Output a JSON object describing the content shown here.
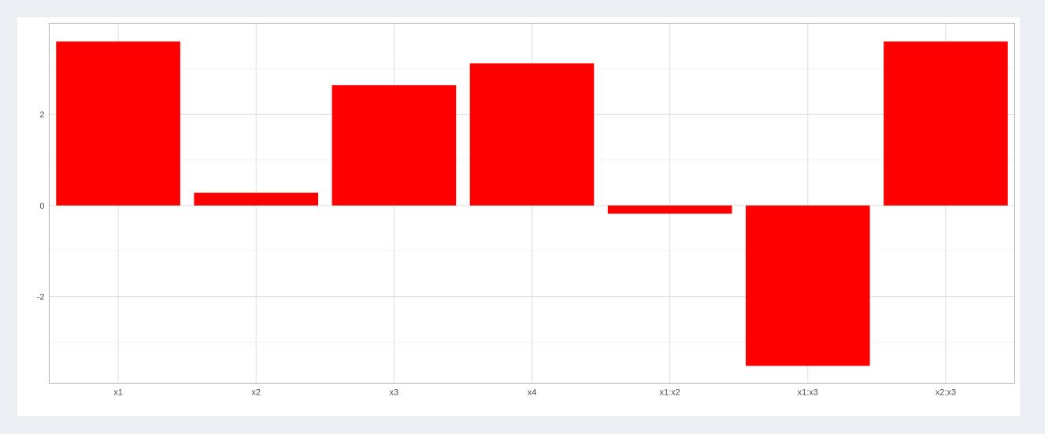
{
  "colors": {
    "page_background": "#ecf0f5",
    "panel_background": "#ffffff",
    "bar_fill": "#ff0000",
    "grid_major": "#dedede",
    "grid_minor": "#ececec",
    "panel_border": "#b3b3b3",
    "tick_text": "#4d4d4d"
  },
  "chart_data": {
    "type": "bar",
    "title": "",
    "xlabel": "",
    "ylabel": "",
    "categories": [
      "x1",
      "x2",
      "x3",
      "x4",
      "x1:x2",
      "x1:x3",
      "x2:x3"
    ],
    "values": [
      3.6,
      0.28,
      2.64,
      3.12,
      -0.18,
      -3.52,
      3.6
    ],
    "ylim": [
      -3.9,
      4.0
    ],
    "y_ticks": [
      -2,
      0,
      2
    ],
    "y_tick_labels": [
      "-2",
      "0",
      "2"
    ],
    "y_minor_ticks": [
      -3,
      -1,
      1,
      3
    ],
    "grid": true,
    "legend": "none"
  }
}
